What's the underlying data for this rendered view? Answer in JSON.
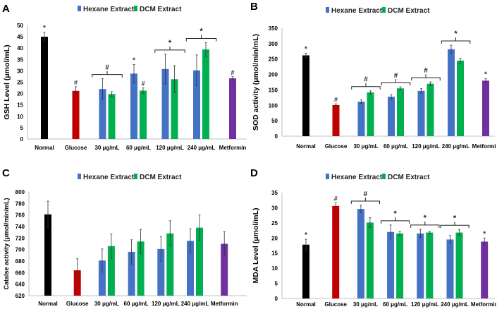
{
  "colors": {
    "normal": "#000000",
    "glucose": "#c00000",
    "hexane": "#4472c4",
    "dcm": "#00b050",
    "metformin": "#7030a0",
    "axis": "#bfbfbf"
  },
  "legend": {
    "hexane": "Hexane Extract",
    "dcm": "DCM Extract"
  },
  "chart_data": [
    {
      "panel": "A",
      "type": "bar",
      "ylabel": "GSH Level (μmol/mL)",
      "ylim": [
        0,
        50
      ],
      "ystep": 5,
      "categories": [
        "Normal",
        "Glucose",
        "30 μg/mL",
        "60 μg/mL",
        "120 μg/mL",
        "240 μg/mL",
        "Metformin"
      ],
      "singles": {
        "Normal": {
          "value": 45,
          "err": 2,
          "mark": "*"
        },
        "Glucose": {
          "value": 21.2,
          "err": 1.8,
          "mark": "#"
        },
        "Metformin": {
          "value": 26.7,
          "err": 0.7,
          "mark": "#"
        }
      },
      "series": [
        {
          "name": "Hexane Extract",
          "values": [
            null,
            null,
            22,
            28.8,
            30.8,
            30.2,
            null
          ],
          "errors": [
            null,
            null,
            4.5,
            4,
            6.5,
            6.8,
            null
          ],
          "marks": [
            null,
            null,
            null,
            "*",
            null,
            null,
            null
          ]
        },
        {
          "name": "DCM Extract",
          "values": [
            null,
            null,
            19.8,
            21.3,
            26.3,
            39.4,
            null
          ],
          "errors": [
            null,
            null,
            1,
            1.2,
            6,
            3,
            null
          ],
          "marks": [
            null,
            null,
            null,
            "#",
            null,
            null,
            null
          ]
        }
      ],
      "bracket_marks": [
        null,
        null,
        "#",
        null,
        "*",
        "*",
        null
      ]
    },
    {
      "panel": "B",
      "type": "bar",
      "ylabel": "SOD activity (μmol/min/mL)",
      "ylim": [
        0,
        350
      ],
      "ystep": 50,
      "categories": [
        "Normal",
        "Glucose",
        "30 μg/mL",
        "60 μg/mL",
        "120 μg/mL",
        "240 μg/mL",
        "Metformin"
      ],
      "singles": {
        "Normal": {
          "value": 262,
          "err": 7,
          "mark": "*"
        },
        "Glucose": {
          "value": 101,
          "err": 4,
          "mark": "#"
        },
        "Metformin": {
          "value": 180,
          "err": 7,
          "mark": "*"
        }
      },
      "series": [
        {
          "name": "Hexane Extract",
          "values": [
            null,
            null,
            112,
            128,
            147,
            282,
            null
          ],
          "errors": [
            null,
            null,
            6,
            7,
            7,
            13,
            null
          ],
          "marks": [
            null,
            null,
            null,
            null,
            null,
            null,
            null
          ]
        },
        {
          "name": "DCM Extract",
          "values": [
            null,
            null,
            142,
            155,
            170,
            245,
            null
          ],
          "errors": [
            null,
            null,
            5,
            5,
            6,
            8,
            null
          ],
          "marks": [
            null,
            null,
            null,
            null,
            null,
            null,
            null
          ]
        }
      ],
      "bracket_marks": [
        null,
        null,
        "#",
        "#",
        "#",
        "*",
        null
      ]
    },
    {
      "panel": "C",
      "type": "bar",
      "ylabel": "Catalse activity (μmol/min/mL)",
      "ylim": [
        620,
        800
      ],
      "ystep": 20,
      "categories": [
        "Normal",
        "Glucose",
        "30 μg/mL",
        "60 μg/mL",
        "120 μg/mL",
        "240 μg/mL",
        "Metformin"
      ],
      "singles": {
        "Normal": {
          "value": 761,
          "err": 23,
          "mark": null
        },
        "Glucose": {
          "value": 664,
          "err": 20,
          "mark": null
        },
        "Metformin": {
          "value": 710,
          "err": 21,
          "mark": null
        }
      },
      "series": [
        {
          "name": "Hexane Extract",
          "values": [
            null,
            null,
            681,
            696,
            701,
            715,
            null
          ],
          "errors": [
            null,
            null,
            20,
            21,
            21,
            21,
            null
          ],
          "marks": [
            null,
            null,
            null,
            null,
            null,
            null,
            null
          ]
        },
        {
          "name": "DCM Extract",
          "values": [
            null,
            null,
            706,
            714,
            728,
            738,
            null
          ],
          "errors": [
            null,
            null,
            21,
            21,
            22,
            22,
            null
          ],
          "marks": [
            null,
            null,
            null,
            null,
            null,
            null,
            null
          ]
        }
      ],
      "bracket_marks": [
        null,
        null,
        null,
        null,
        null,
        null,
        null
      ]
    },
    {
      "panel": "D",
      "type": "bar",
      "ylabel": "MDA Level (μmol/mL)",
      "ylim": [
        0,
        35
      ],
      "ystep": 5,
      "categories": [
        "Normal",
        "Glucose",
        "30 μg/mL",
        "60 μg/mL",
        "120 μg/mL",
        "240 μg/mL",
        "Metformin"
      ],
      "singles": {
        "Normal": {
          "value": 17.8,
          "err": 1.8,
          "mark": "*"
        },
        "Glucose": {
          "value": 30.6,
          "err": 1,
          "mark": "#"
        },
        "Metformin": {
          "value": 18.8,
          "err": 1.2,
          "mark": "*"
        }
      },
      "series": [
        {
          "name": "Hexane Extract",
          "values": [
            null,
            null,
            29.6,
            22,
            21.5,
            19.5,
            null
          ],
          "errors": [
            null,
            null,
            1.2,
            2.3,
            1.4,
            1.3,
            null
          ],
          "marks": [
            null,
            null,
            null,
            null,
            null,
            null,
            null
          ]
        },
        {
          "name": "DCM Extract",
          "values": [
            null,
            null,
            25.1,
            21.5,
            21.8,
            21.8,
            null
          ],
          "errors": [
            null,
            null,
            1.6,
            0.7,
            0.4,
            1,
            null
          ],
          "marks": [
            null,
            null,
            null,
            null,
            null,
            null,
            null
          ]
        }
      ],
      "bracket_marks": [
        null,
        null,
        "#",
        "*",
        "*",
        "*",
        null
      ]
    }
  ]
}
